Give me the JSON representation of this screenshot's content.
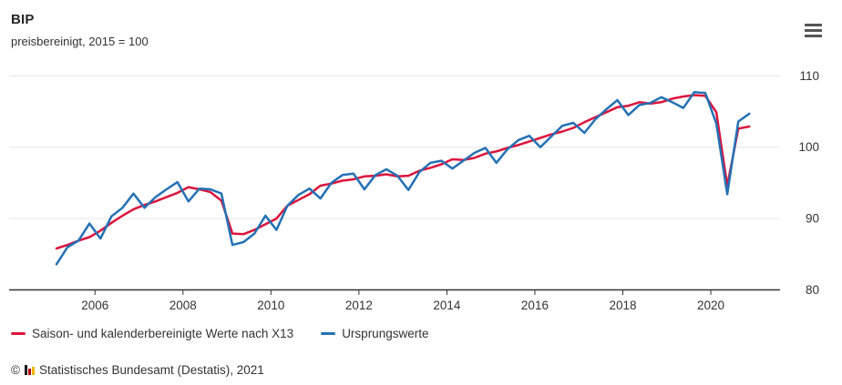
{
  "header": {
    "title": "BIP",
    "subtitle": "preisbereinigt, 2015 = 100"
  },
  "menu": {
    "icon": "hamburger-icon"
  },
  "legend": {
    "items": [
      {
        "label": "Saison- und kalenderbereinigte Werte nach X13",
        "color": "#dc143c"
      },
      {
        "label": "Ursprungswerte",
        "color": "#2471b5"
      }
    ]
  },
  "footer": {
    "copyright": "©",
    "logo": "destatis-bar-logo",
    "text": "Statistisches Bundesamt (Destatis), 2021"
  },
  "chart_data": {
    "type": "line",
    "title": "BIP",
    "subtitle": "preisbereinigt, 2015 = 100",
    "frequency": "quarterly",
    "x_start": "2005-Q1",
    "x_end": "2020-Q4",
    "x_tick_years": [
      2006,
      2008,
      2010,
      2012,
      2014,
      2016,
      2018,
      2020
    ],
    "y_ticks": [
      80,
      90,
      100,
      110
    ],
    "ylim": [
      80,
      111.5
    ],
    "grid": "horizontal",
    "legend_position": "bottom-left",
    "colors": {
      "grid": "#e6e6e6",
      "axis": "#333333",
      "tick_label": "#333333"
    },
    "series": [
      {
        "name": "Saison- und kalenderbereinigte Werte nach X13",
        "color": "#dc143c",
        "values": [
          85.8,
          86.3,
          86.9,
          87.4,
          88.3,
          89.4,
          90.4,
          91.3,
          91.9,
          92.4,
          93.0,
          93.6,
          94.4,
          94.1,
          93.7,
          92.5,
          87.9,
          87.8,
          88.4,
          89.2,
          90.0,
          91.8,
          92.6,
          93.4,
          94.6,
          94.9,
          95.3,
          95.5,
          95.9,
          96.0,
          96.2,
          95.9,
          96.0,
          96.7,
          97.1,
          97.6,
          98.3,
          98.2,
          98.5,
          99.1,
          99.4,
          99.9,
          100.3,
          100.8,
          101.3,
          101.8,
          102.2,
          102.7,
          103.5,
          104.2,
          104.9,
          105.6,
          105.8,
          106.3,
          106.1,
          106.3,
          106.8,
          107.1,
          107.3,
          107.2,
          104.9,
          94.6,
          102.6,
          102.9
        ]
      },
      {
        "name": "Ursprungswerte",
        "color": "#2471b5",
        "values": [
          83.6,
          86.0,
          86.9,
          89.3,
          87.2,
          90.3,
          91.5,
          93.5,
          91.5,
          93.0,
          94.1,
          95.1,
          92.4,
          94.2,
          94.1,
          93.5,
          86.3,
          86.7,
          87.9,
          90.4,
          88.4,
          91.8,
          93.3,
          94.2,
          92.8,
          95.0,
          96.1,
          96.3,
          94.1,
          96.1,
          96.9,
          96.0,
          94.0,
          96.5,
          97.8,
          98.1,
          97.0,
          98.1,
          99.2,
          99.9,
          97.8,
          99.7,
          101.0,
          101.6,
          100.0,
          101.5,
          103.0,
          103.4,
          102.0,
          103.9,
          105.3,
          106.6,
          104.5,
          105.9,
          106.2,
          107.0,
          106.3,
          105.5,
          107.7,
          107.6,
          103.3,
          93.4,
          103.6,
          104.7
        ]
      }
    ]
  }
}
